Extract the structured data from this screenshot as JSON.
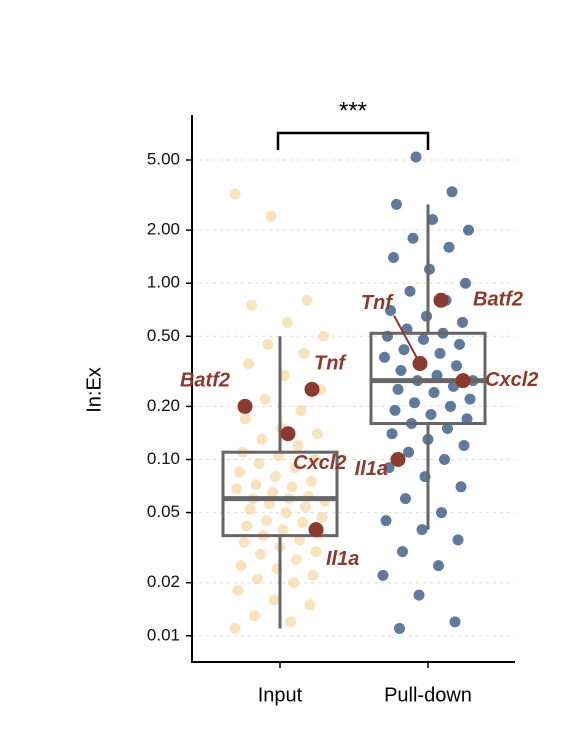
{
  "chart_data": {
    "type": "box",
    "y_label": "In:Ex",
    "log_y": true,
    "grid": true,
    "ylim": [
      0.0071,
      9
    ],
    "yticks": [
      0.01,
      0.02,
      0.05,
      {
        "value": 0.1,
        "label": "0.10"
      },
      {
        "value": 0.2,
        "label": "0.20"
      },
      {
        "value": 0.5,
        "label": "0.50"
      },
      {
        "value": 1,
        "label": "1.00"
      },
      {
        "value": 2,
        "label": "2.00"
      },
      {
        "value": 5,
        "label": "5.00"
      }
    ],
    "significance": "***",
    "highlight_color": "#8b3a2e",
    "groups": [
      {
        "name": "Input",
        "color": "#f6d49c",
        "box": {
          "whislo": 0.011,
          "q1": 0.037,
          "med": 0.06,
          "q3": 0.11,
          "whishi": 0.5
        },
        "points": [
          0.011,
          0.012,
          0.013,
          0.015,
          0.016,
          0.018,
          0.02,
          0.021,
          0.022,
          0.024,
          0.025,
          0.027,
          0.029,
          0.03,
          0.032,
          0.034,
          0.035,
          0.037,
          0.038,
          0.04,
          0.042,
          0.044,
          0.045,
          0.047,
          0.05,
          0.052,
          0.054,
          0.056,
          0.058,
          0.06,
          0.06,
          0.062,
          0.065,
          0.068,
          0.07,
          0.072,
          0.075,
          0.08,
          0.085,
          0.09,
          0.095,
          0.1,
          0.105,
          0.11,
          0.12,
          0.13,
          0.14,
          0.15,
          0.17,
          0.19,
          0.22,
          0.25,
          0.3,
          0.35,
          0.4,
          0.45,
          0.5,
          0.6,
          0.75,
          0.8,
          2.4,
          3.2
        ],
        "genes": [
          {
            "label": "Batf2",
            "value": 0.2
          },
          {
            "label": "Tnf",
            "value": 0.25
          },
          {
            "label": "Cxcl2",
            "value": 0.14
          },
          {
            "label": "Il1a",
            "value": 0.04
          }
        ]
      },
      {
        "name": "Pull-down",
        "color": "#2b4d7e",
        "box": {
          "whislo": 0.04,
          "q1": 0.16,
          "med": 0.28,
          "q3": 0.52,
          "whishi": 2.8
        },
        "points": [
          0.011,
          0.012,
          0.017,
          0.022,
          0.025,
          0.03,
          0.035,
          0.04,
          0.045,
          0.05,
          0.06,
          0.07,
          0.08,
          0.09,
          0.1,
          0.11,
          0.12,
          0.13,
          0.14,
          0.15,
          0.16,
          0.17,
          0.18,
          0.19,
          0.2,
          0.21,
          0.22,
          0.24,
          0.25,
          0.26,
          0.28,
          0.28,
          0.3,
          0.32,
          0.34,
          0.36,
          0.38,
          0.4,
          0.42,
          0.45,
          0.48,
          0.5,
          0.52,
          0.55,
          0.6,
          0.65,
          0.7,
          0.8,
          0.9,
          1.0,
          1.2,
          1.4,
          1.6,
          1.8,
          2.0,
          2.3,
          2.8,
          3.3,
          5.2
        ],
        "genes": [
          {
            "label": "Tnf",
            "value": 0.35
          },
          {
            "label": "Batf2",
            "value": 0.8
          },
          {
            "label": "Cxcl2",
            "value": 0.28
          },
          {
            "label": "Il1a",
            "value": 0.1
          }
        ]
      }
    ]
  }
}
